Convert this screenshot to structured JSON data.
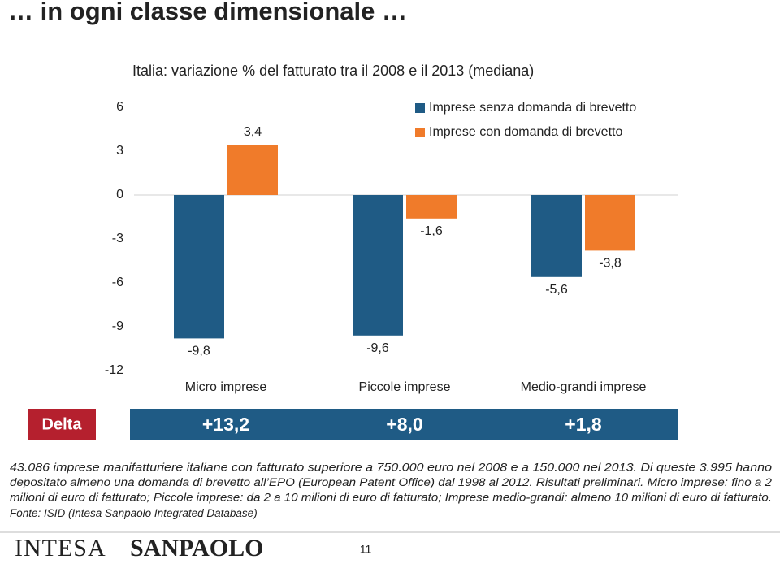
{
  "header": {
    "title": "… in ogni classe dimensionale …"
  },
  "chart_data": {
    "type": "bar",
    "title": "Italia: variazione % del fatturato tra il 2008 e il 2013",
    "subtitle": "(mediana)",
    "categories": [
      "Micro imprese",
      "Piccole imprese",
      "Medio-grandi imprese"
    ],
    "series": [
      {
        "name": "Imprese senza domanda di brevetto",
        "color": "#1f5b85",
        "values": [
          -9.8,
          -9.6,
          -5.6
        ],
        "value_labels": [
          "-9,8",
          "-9,6",
          "-5,6"
        ]
      },
      {
        "name": "Imprese con domanda di brevetto",
        "color": "#f07b2a",
        "values": [
          3.4,
          -1.6,
          -3.8
        ],
        "value_labels": [
          "3,4",
          "-1,6",
          "-3,8"
        ]
      }
    ],
    "ylim": [
      -12,
      6
    ],
    "yticks": [
      -12,
      -9,
      -6,
      -3,
      0,
      3,
      6
    ],
    "grid": false,
    "legend": "top-right"
  },
  "delta": {
    "label": "Delta",
    "values": [
      "+13,2",
      "+8,0",
      "+1,8"
    ]
  },
  "notes": [
    "43.086  imprese manifatturiere italiane con fatturato superiore a 750.000  euro nel 2008  e a 150.000  nel 2013. Di queste 3.995 hanno",
    "depositato almeno una domanda di brevetto all’EPO (European Patent Office) dal 1998 al 2012. Risultati preliminari. Micro imprese: fino a 2",
    "milioni di euro di fatturato; Piccole imprese: da 2 a 10 milioni di euro di fatturato; Imprese medio-grandi: almeno 10 milioni di euro di fatturato.",
    "Fonte: ISID (Intesa Sanpaolo Integrated Database)"
  ],
  "footer": {
    "logo_left": "INTESA",
    "logo_right": "SANPAOLO",
    "page": "11"
  }
}
